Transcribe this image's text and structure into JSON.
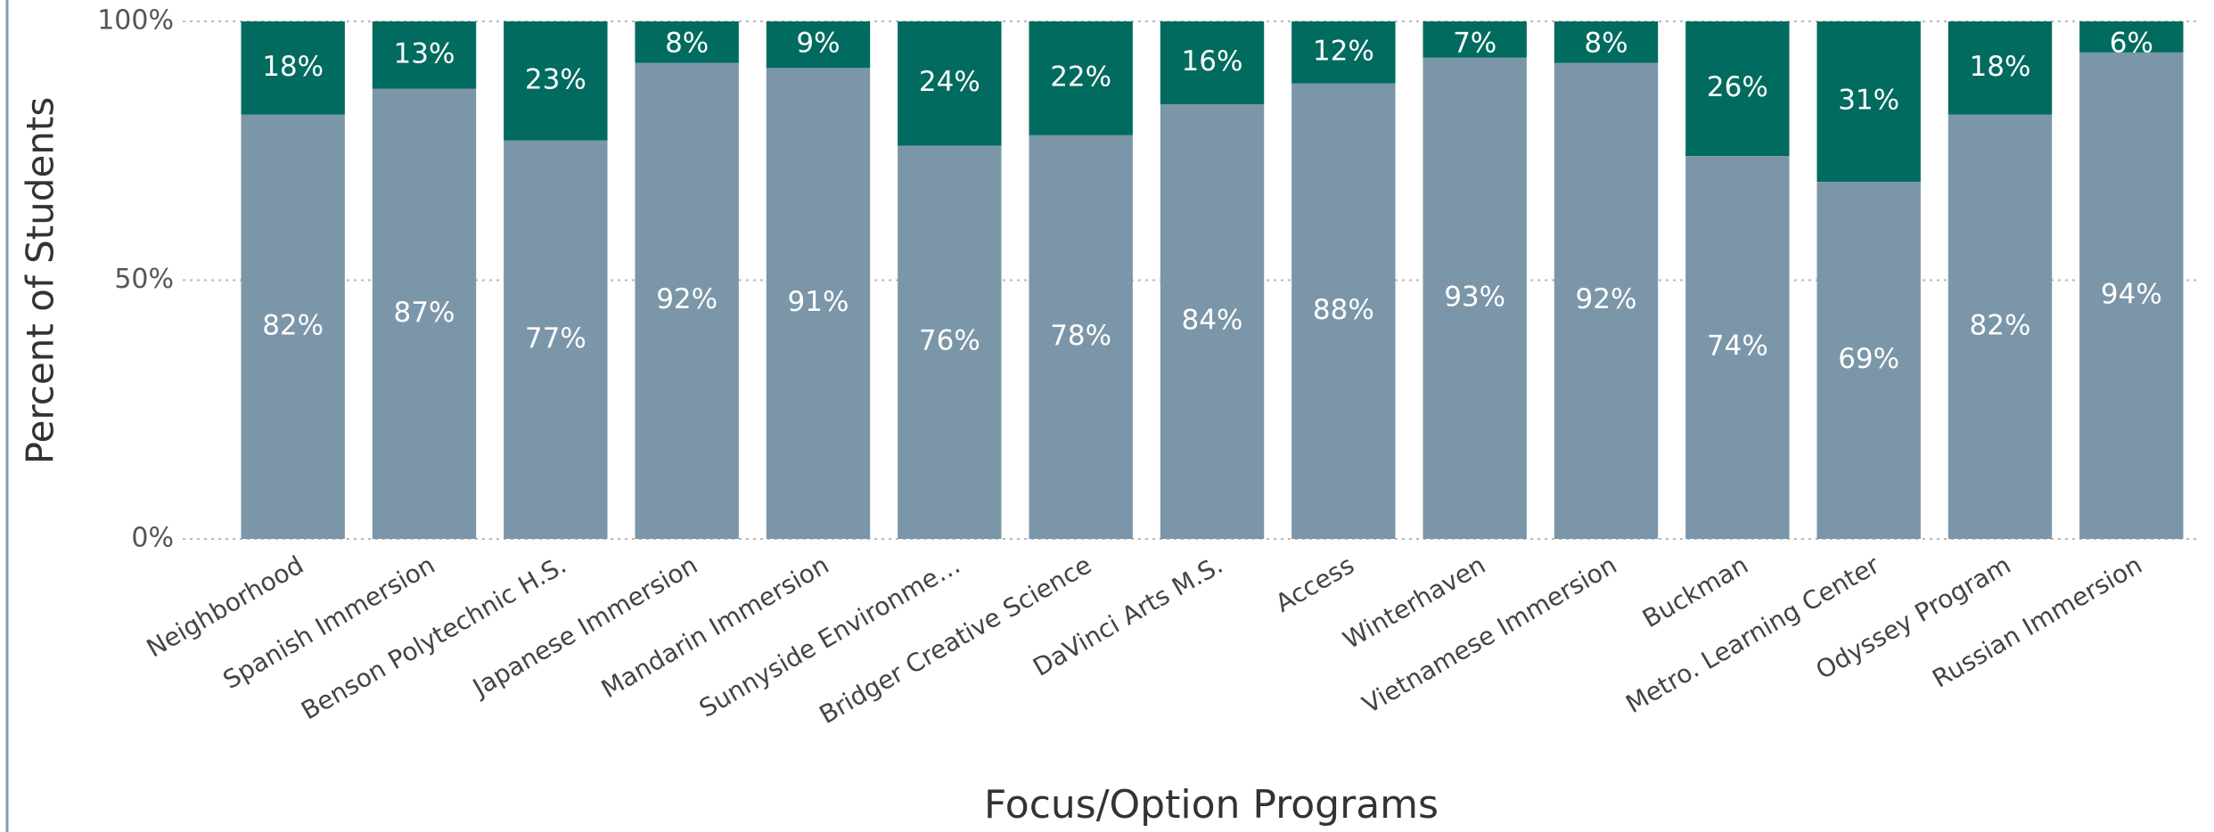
{
  "chart_data": {
    "type": "stacked-bar",
    "y_label": "Percent of Students",
    "x_label": "Focus/Option Programs",
    "categories": [
      "Neighborhood",
      "Spanish Immersion",
      "Benson Polytechnic H.S.",
      "Japanese Immersion",
      "Mandarin Immersion",
      "Sunnyside Environme…",
      "Bridger Creative Science",
      "DaVinci Arts M.S.",
      "Access",
      "Winterhaven",
      "Vietnamese Immersion",
      "Buckman",
      "Metro. Learning Center",
      "Odyssey Program",
      "Russian Immersion"
    ],
    "series": [
      {
        "color": "#7b96a8",
        "values": [
          82,
          87,
          77,
          92,
          91,
          76,
          78,
          84,
          88,
          93,
          92,
          74,
          69,
          82,
          94
        ],
        "value_labels": [
          "82%",
          "87%",
          "77%",
          "92%",
          "91%",
          "76%",
          "78%",
          "84%",
          "88%",
          "93%",
          "92%",
          "74%",
          "69%",
          "82%",
          "94%"
        ]
      },
      {
        "color": "#006b5e",
        "values": [
          18,
          13,
          23,
          8,
          9,
          24,
          22,
          16,
          12,
          7,
          8,
          26,
          31,
          18,
          6
        ],
        "value_labels": [
          "18%",
          "13%",
          "23%",
          "8%",
          "9%",
          "24%",
          "22%",
          "16%",
          "12%",
          "7%",
          "8%",
          "26%",
          "31%",
          "18%",
          "6%"
        ]
      }
    ],
    "ylim": [
      0,
      100
    ],
    "yticks": [
      {
        "value": 0,
        "label": "0%"
      },
      {
        "value": 50,
        "label": "50%"
      },
      {
        "value": 100,
        "label": "100%"
      }
    ],
    "grid": true
  }
}
